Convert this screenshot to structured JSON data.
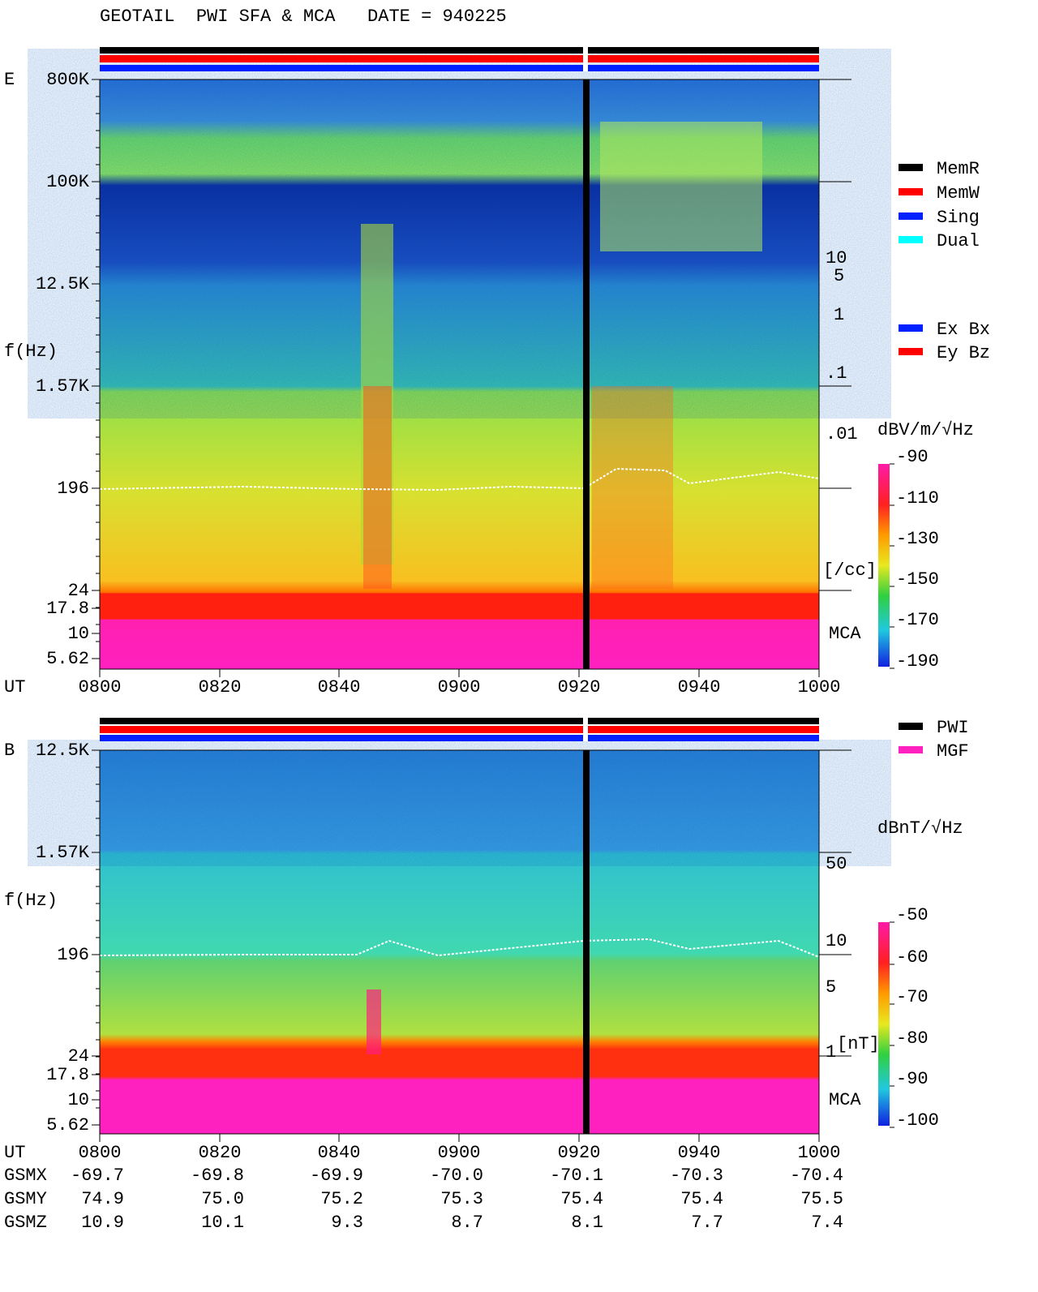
{
  "header": {
    "title": "GEOTAIL  PWI SFA & MCA   DATE = 940225"
  },
  "panel_e": {
    "label": "E",
    "y_axis_label": "f(Hz)",
    "y_ticks": [
      "800K",
      "100K",
      "12.5K",
      "1.57K",
      "196",
      "24",
      "17.8",
      "10",
      "5.62"
    ],
    "density_ticks": [
      "10",
      "5",
      "1",
      ".1",
      ".01",
      "[/cc]"
    ],
    "mca_label": "MCA",
    "x_axis_label": "UT",
    "x_ticks": [
      "0800",
      "0820",
      "0840",
      "0900",
      "0920",
      "0940",
      "1000"
    ],
    "colorbar": {
      "title": "dBV/m/√Hz",
      "ticks": [
        "-90",
        "-110",
        "-130",
        "-150",
        "-170",
        "-190"
      ]
    }
  },
  "legend_status": [
    "MemR",
    "MemW",
    "Sing",
    "Dual"
  ],
  "legend_component": [
    "Ex Bx",
    "Ey Bz"
  ],
  "panel_b": {
    "label": "B",
    "y_axis_label": "f(Hz)",
    "y_ticks": [
      "12.5K",
      "1.57K",
      "196",
      "24",
      "17.8",
      "10",
      "5.62"
    ],
    "field_ticks": [
      "50",
      "10",
      "5",
      "1",
      "[nT]"
    ],
    "mca_label": "MCA",
    "x_axis_label": "UT",
    "x_ticks": [
      "0800",
      "0820",
      "0840",
      "0900",
      "0920",
      "0940",
      "1000"
    ],
    "colorbar": {
      "title": "dBnT/√Hz",
      "ticks": [
        "-50",
        "-60",
        "-70",
        "-80",
        "-90",
        "-100"
      ]
    }
  },
  "legend_source": [
    "PWI",
    "MGF"
  ],
  "orbit": [
    {
      "label": "GSMX",
      "values": [
        "-69.7",
        "-69.8",
        "-69.9",
        "-70.0",
        "-70.1",
        "-70.3",
        "-70.4"
      ]
    },
    {
      "label": "GSMY",
      "values": [
        "74.9",
        "75.0",
        "75.2",
        "75.3",
        "75.4",
        "75.4",
        "75.5"
      ]
    },
    {
      "label": "GSMZ",
      "values": [
        "10.9",
        "10.1",
        "9.3",
        "8.7",
        "8.1",
        "7.7",
        "7.4"
      ]
    }
  ]
}
